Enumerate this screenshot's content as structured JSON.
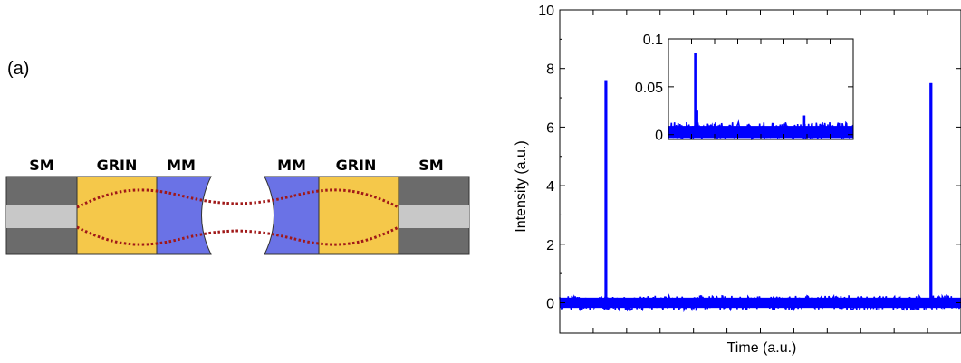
{
  "panel_label": "(a)",
  "schematic": {
    "labels": [
      "SM",
      "GRIN",
      "MM",
      "MM",
      "GRIN",
      "SM"
    ],
    "colors": {
      "sm_cladding": "#6b6b6b",
      "sm_core": "#c8c8c8",
      "grin": "#f5c84a",
      "mm": "#6a72e6",
      "beam": "#a01818"
    }
  },
  "chart_data": [
    {
      "type": "line",
      "title": "",
      "xlabel": "Time (a.u.)",
      "ylabel": "Intensity (a.u.)",
      "xlim": [
        0,
        100
      ],
      "ylim": [
        0,
        10
      ],
      "yticks": [
        0,
        2,
        4,
        6,
        8,
        10
      ],
      "ytick_labels": [
        "0",
        "2",
        "4",
        "6",
        "8",
        "10"
      ],
      "xtick_labels": [],
      "grid": false,
      "color": "#0000ff",
      "noise_band": [
        -0.25,
        0.25
      ],
      "series": [
        {
          "x": [
            0,
            11.5,
            11.5,
            11.5,
            92.5,
            92.5,
            92.5,
            100
          ],
          "y": [
            0,
            0,
            7.6,
            0,
            0,
            7.5,
            0,
            0
          ]
        }
      ]
    },
    {
      "type": "line",
      "inset": true,
      "title": "",
      "xlim": [
        0,
        100
      ],
      "ylim": [
        -0.005,
        0.1
      ],
      "yticks": [
        0,
        0.05,
        0.1
      ],
      "ytick_labels": [
        "0",
        "0.05",
        "0.1"
      ],
      "grid": false,
      "color": "#0000ff",
      "noise_band": [
        -0.005,
        0.013
      ],
      "series": [
        {
          "x": [
            0,
            14.5,
            14.5,
            14.5,
            15.5,
            15.5,
            15.5,
            73.5,
            73.5,
            73.5,
            100
          ],
          "y": [
            0,
            0,
            0.085,
            0,
            0,
            0.025,
            0,
            0,
            0.02,
            0,
            0
          ]
        }
      ]
    }
  ]
}
